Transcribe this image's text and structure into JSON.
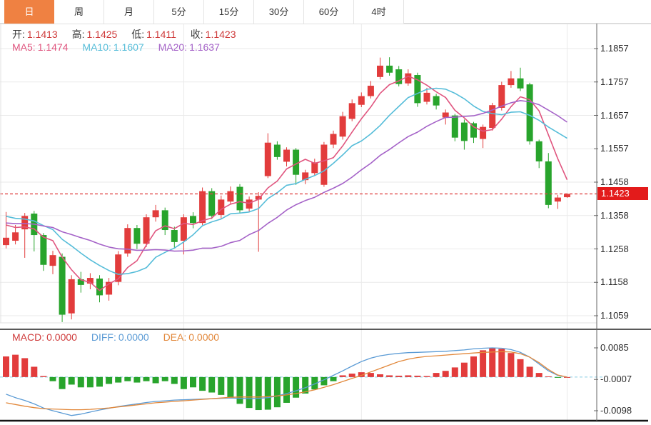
{
  "header_tabs": {
    "items": [
      {
        "label": "日",
        "active": true
      },
      {
        "label": "周",
        "active": false
      },
      {
        "label": "月",
        "active": false
      },
      {
        "label": "5分",
        "active": false
      },
      {
        "label": "15分",
        "active": false
      },
      {
        "label": "30分",
        "active": false
      },
      {
        "label": "60分",
        "active": false
      },
      {
        "label": "4时",
        "active": false
      }
    ]
  },
  "readout": {
    "open_label": "开:",
    "open_value": "1.1413",
    "high_label": "高:",
    "high_value": "1.1425",
    "low_label": "低:",
    "low_value": "1.1411",
    "close_label": "收:",
    "close_value": "1.1423",
    "ma5_label": "MA5:",
    "ma5_value": "1.1474",
    "ma10_label": "MA10:",
    "ma10_value": "1.1607",
    "ma20_label": "MA20:",
    "ma20_value": "1.1637"
  },
  "macd_readout": {
    "macd_label": "MACD:",
    "macd_value": "0.0000",
    "diff_label": "DIFF:",
    "diff_value": "0.0000",
    "dea_label": "DEA:",
    "dea_value": "0.0000"
  },
  "price_tag": {
    "label": "1.1423"
  },
  "colors": {
    "up": "#e23c3c",
    "down": "#28a42c",
    "ma5": "#e0557f",
    "ma10": "#56bdd9",
    "ma20": "#a563c8",
    "diff": "#5b9bd5",
    "dea": "#e2883b",
    "tag": "#e31b1b",
    "tab_active": "#ef8142",
    "value_text": "#cf3b3b",
    "grid": "#eaeaea",
    "axis": "#666666",
    "zero_dash": "#86cde4",
    "price_dash": "#e04848",
    "border_dark": "#222222",
    "border_light": "#e2e2e2"
  },
  "chart_data": [
    {
      "type": "candlestick",
      "y_tick_labels": [
        "1.1857",
        "1.1757",
        "1.1657",
        "1.1557",
        "1.1458",
        "1.1358",
        "1.1258",
        "1.1158",
        "1.1059"
      ],
      "y_ticks": [
        1.1857,
        1.1757,
        1.1657,
        1.1557,
        1.1458,
        1.1358,
        1.1258,
        1.1158,
        1.1059
      ],
      "last_price": 1.1423,
      "vgrid_indices": [
        19,
        38,
        60
      ],
      "ma_periods": [
        5,
        10,
        20
      ],
      "ma_left_anchors": [
        1.133,
        1.1356,
        1.1336
      ],
      "candles": [
        [
          1.127,
          1.1369,
          1.126,
          1.1292
        ],
        [
          1.1283,
          1.133,
          1.1272,
          1.1308
        ],
        [
          1.1317,
          1.1366,
          1.1232,
          1.1357
        ],
        [
          1.1364,
          1.1372,
          1.1251,
          1.13
        ],
        [
          1.13,
          1.1306,
          1.1193,
          1.1211
        ],
        [
          1.1208,
          1.1253,
          1.1183,
          1.124
        ],
        [
          1.1235,
          1.1245,
          1.104,
          1.1062
        ],
        [
          1.1066,
          1.118,
          1.1048,
          1.1168
        ],
        [
          1.1168,
          1.119,
          1.1128,
          1.1151
        ],
        [
          1.1155,
          1.1186,
          1.1138,
          1.1172
        ],
        [
          1.117,
          1.118,
          1.1099,
          1.112
        ],
        [
          1.1122,
          1.1172,
          1.1104,
          1.116
        ],
        [
          1.116,
          1.1252,
          1.115,
          1.1242
        ],
        [
          1.1245,
          1.1332,
          1.1235,
          1.1321
        ],
        [
          1.1321,
          1.133,
          1.1258,
          1.1274
        ],
        [
          1.1274,
          1.1362,
          1.1264,
          1.1353
        ],
        [
          1.1353,
          1.139,
          1.134,
          1.1374
        ],
        [
          1.1374,
          1.1382,
          1.13,
          1.1315
        ],
        [
          1.1315,
          1.1325,
          1.1262,
          1.1279
        ],
        [
          1.1283,
          1.1362,
          1.1242,
          1.1353
        ],
        [
          1.1357,
          1.1368,
          1.132,
          1.1336
        ],
        [
          1.1336,
          1.1442,
          1.133,
          1.1431
        ],
        [
          1.1431,
          1.144,
          1.1348,
          1.1357
        ],
        [
          1.136,
          1.1418,
          1.135,
          1.1406
        ],
        [
          1.14,
          1.1445,
          1.1392,
          1.1431
        ],
        [
          1.1444,
          1.1452,
          1.1366,
          1.1374
        ],
        [
          1.1379,
          1.1415,
          1.137,
          1.1406
        ],
        [
          1.1406,
          1.1428,
          1.125,
          1.1417
        ],
        [
          1.1476,
          1.1604,
          1.147,
          1.1576
        ],
        [
          1.157,
          1.158,
          1.1525,
          1.1533
        ],
        [
          1.1519,
          1.1562,
          1.1505,
          1.1555
        ],
        [
          1.1555,
          1.156,
          1.145,
          1.148
        ],
        [
          1.1464,
          1.1495,
          1.1452,
          1.1487
        ],
        [
          1.1485,
          1.1528,
          1.1478,
          1.1517
        ],
        [
          1.145,
          1.1578,
          1.1444,
          1.157
        ],
        [
          1.157,
          1.1612,
          1.156,
          1.1602
        ],
        [
          1.1594,
          1.1668,
          1.1585,
          1.1655
        ],
        [
          1.1647,
          1.1705,
          1.164,
          1.1694
        ],
        [
          1.1689,
          1.1726,
          1.1682,
          1.1715
        ],
        [
          1.1715,
          1.176,
          1.1708,
          1.1746
        ],
        [
          1.1772,
          1.183,
          1.1765,
          1.1806
        ],
        [
          1.1806,
          1.1831,
          1.1776,
          1.1785
        ],
        [
          1.1795,
          1.1805,
          1.1744,
          1.1751
        ],
        [
          1.1753,
          1.1795,
          1.1746,
          1.1783
        ],
        [
          1.1778,
          1.1785,
          1.1683,
          1.1694
        ],
        [
          1.1698,
          1.174,
          1.169,
          1.1725
        ],
        [
          1.1715,
          1.1722,
          1.1675,
          1.1687
        ],
        [
          1.1651,
          1.1675,
          1.163,
          1.1666
        ],
        [
          1.1657,
          1.1662,
          1.158,
          1.1591
        ],
        [
          1.1636,
          1.1645,
          1.1555,
          1.1581
        ],
        [
          1.1634,
          1.1638,
          1.1575,
          1.1591
        ],
        [
          1.1587,
          1.163,
          1.156,
          1.1623
        ],
        [
          1.162,
          1.1695,
          1.1612,
          1.1688
        ],
        [
          1.168,
          1.1758,
          1.1672,
          1.1748
        ],
        [
          1.1748,
          1.179,
          1.174,
          1.1768
        ],
        [
          1.1768,
          1.18,
          1.173,
          1.1738
        ],
        [
          1.175,
          1.1755,
          1.157,
          1.158
        ],
        [
          1.158,
          1.1585,
          1.15,
          1.152
        ],
        [
          1.152,
          1.1545,
          1.138,
          1.139
        ],
        [
          1.14,
          1.142,
          1.1378,
          1.1412
        ],
        [
          1.1413,
          1.1425,
          1.1411,
          1.1423
        ]
      ]
    },
    {
      "type": "bar",
      "name": "MACD",
      "y_tick_labels": [
        "0.0085",
        "-0.0007",
        "-0.0098"
      ],
      "y_ticks": [
        0.0085,
        -0.0007,
        -0.0098
      ],
      "values": [
        0.006,
        0.0065,
        0.0055,
        0.003,
        0.0003,
        -0.0012,
        -0.0035,
        -0.0022,
        -0.003,
        -0.003,
        -0.0028,
        -0.002,
        -0.0016,
        -0.0012,
        -0.0016,
        -0.0012,
        -0.0018,
        -0.0012,
        -0.002,
        -0.0035,
        -0.003,
        -0.004,
        -0.0045,
        -0.0052,
        -0.0062,
        -0.0078,
        -0.009,
        -0.0096,
        -0.0095,
        -0.0088,
        -0.0075,
        -0.006,
        -0.0048,
        -0.0036,
        -0.0024,
        -0.0012,
        0.0005,
        0.001,
        0.0014,
        0.0012,
        0.0008,
        0.0005,
        0.0004,
        0.0005,
        0.0004,
        0.0003,
        0.0012,
        0.0018,
        0.0028,
        0.0042,
        0.006,
        0.0078,
        0.0085,
        0.0082,
        0.007,
        0.0052,
        0.003,
        0.0012,
        0.0002,
        -0.0001,
        0.0
      ],
      "diff": [
        -0.005,
        -0.006,
        -0.0068,
        -0.0078,
        -0.009,
        -0.0098,
        -0.0105,
        -0.0112,
        -0.0108,
        -0.0102,
        -0.0096,
        -0.0091,
        -0.0086,
        -0.0082,
        -0.0078,
        -0.0074,
        -0.0071,
        -0.0069,
        -0.0067,
        -0.0066,
        -0.0065,
        -0.0064,
        -0.0063,
        -0.0062,
        -0.0061,
        -0.0062,
        -0.0063,
        -0.0062,
        -0.006,
        -0.0055,
        -0.0048,
        -0.004,
        -0.0031,
        -0.002,
        -0.0008,
        0.0005,
        0.0018,
        0.0032,
        0.0045,
        0.0055,
        0.0062,
        0.0066,
        0.0069,
        0.0071,
        0.0072,
        0.0073,
        0.0074,
        0.0075,
        0.0077,
        0.0079,
        0.0082,
        0.0084,
        0.0085,
        0.0084,
        0.008,
        0.0072,
        0.0058,
        0.0038,
        0.0018,
        0.0005,
        0.0
      ],
      "dea": [
        -0.0075,
        -0.008,
        -0.0085,
        -0.0089,
        -0.0092,
        -0.0093,
        -0.0094,
        -0.0095,
        -0.0095,
        -0.0094,
        -0.0092,
        -0.009,
        -0.0087,
        -0.0084,
        -0.0081,
        -0.0078,
        -0.0075,
        -0.0073,
        -0.0071,
        -0.0069,
        -0.0067,
        -0.0065,
        -0.0063,
        -0.0061,
        -0.0059,
        -0.0058,
        -0.0058,
        -0.0058,
        -0.0057,
        -0.0055,
        -0.0052,
        -0.0048,
        -0.0043,
        -0.0037,
        -0.003,
        -0.0022,
        -0.0013,
        -0.0004,
        0.0005,
        0.0015,
        0.0025,
        0.0035,
        0.0045,
        0.0052,
        0.0057,
        0.006,
        0.0062,
        0.0064,
        0.0066,
        0.0068,
        0.007,
        0.0072,
        0.0073,
        0.0074,
        0.0073,
        0.0068,
        0.0058,
        0.0042,
        0.0022,
        0.0006,
        0.0
      ]
    }
  ]
}
